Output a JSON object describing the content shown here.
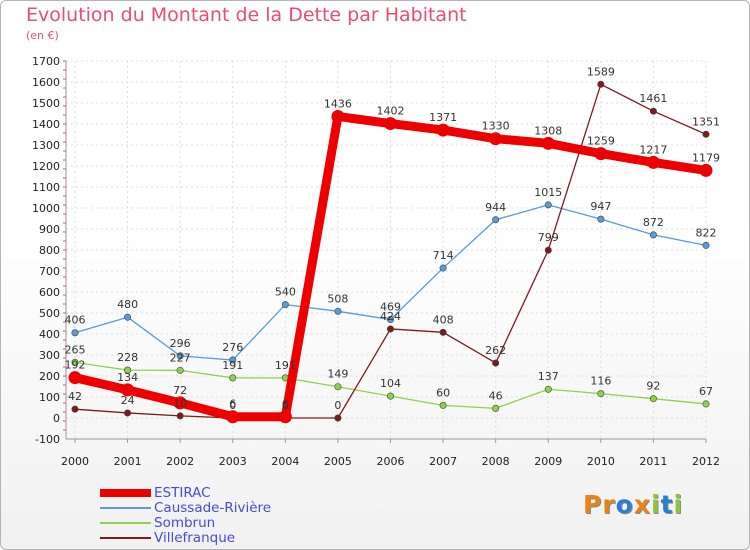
{
  "title": "Evolution du Montant de la Dette par Habitant",
  "subtitle": "(en €)",
  "logo": {
    "text": "Proxiti",
    "colors": [
      "#e8831a",
      "#e8831a",
      "#2a7fd4",
      "#e8831a",
      "#8cc63e",
      "#2a7fd4",
      "#8cc63e"
    ]
  },
  "chart_data": {
    "type": "line",
    "x": [
      "2000",
      "2001",
      "2002",
      "2003",
      "2004",
      "2005",
      "2006",
      "2007",
      "2008",
      "2009",
      "2010",
      "2011",
      "2012"
    ],
    "ylim": [
      -100,
      1700
    ],
    "yticks": [
      -100,
      0,
      100,
      200,
      300,
      400,
      500,
      600,
      700,
      800,
      900,
      1000,
      1100,
      1200,
      1300,
      1400,
      1500,
      1600,
      1700
    ],
    "grid": true,
    "legend_position": "bottom-left",
    "series": [
      {
        "name": "ESTIRAC",
        "color": "#ee0000",
        "values": [
          192,
          134,
          72,
          6,
          6,
          1436,
          1402,
          1371,
          1330,
          1308,
          1259,
          1217,
          1179
        ],
        "labels": [
          "192",
          "134",
          "72",
          "6",
          "6",
          "1436",
          "1402",
          "1371",
          "1330",
          "1308",
          "1259",
          "1217",
          "1179"
        ]
      },
      {
        "name": "Caussade-Rivière",
        "color": "#5b9bd5",
        "values": [
          406,
          480,
          296,
          276,
          540,
          508,
          469,
          714,
          944,
          1015,
          947,
          872,
          822
        ],
        "labels": [
          "406",
          "480",
          "296",
          "276",
          "540",
          "508",
          "469",
          "714",
          "944",
          "1015",
          "947",
          "872",
          "822"
        ]
      },
      {
        "name": "Sombrun",
        "color": "#8fd14f",
        "values": [
          265,
          228,
          227,
          191,
          191,
          149,
          104,
          60,
          46,
          137,
          116,
          92,
          67
        ],
        "labels": [
          "265",
          "228",
          "227",
          "191",
          "191",
          "149",
          "104",
          "60",
          "46",
          "137",
          "116",
          "92",
          "67"
        ]
      },
      {
        "name": "Villefranque",
        "color": "#7b1c1c",
        "values": [
          42,
          24,
          10,
          0,
          0,
          0,
          424,
          408,
          262,
          799,
          1589,
          1461,
          1351
        ],
        "labels": [
          "42",
          "24",
          "10",
          "0",
          "0",
          "0",
          "424",
          "408",
          "262",
          "799",
          "1589",
          "1461",
          "1351"
        ]
      }
    ]
  }
}
